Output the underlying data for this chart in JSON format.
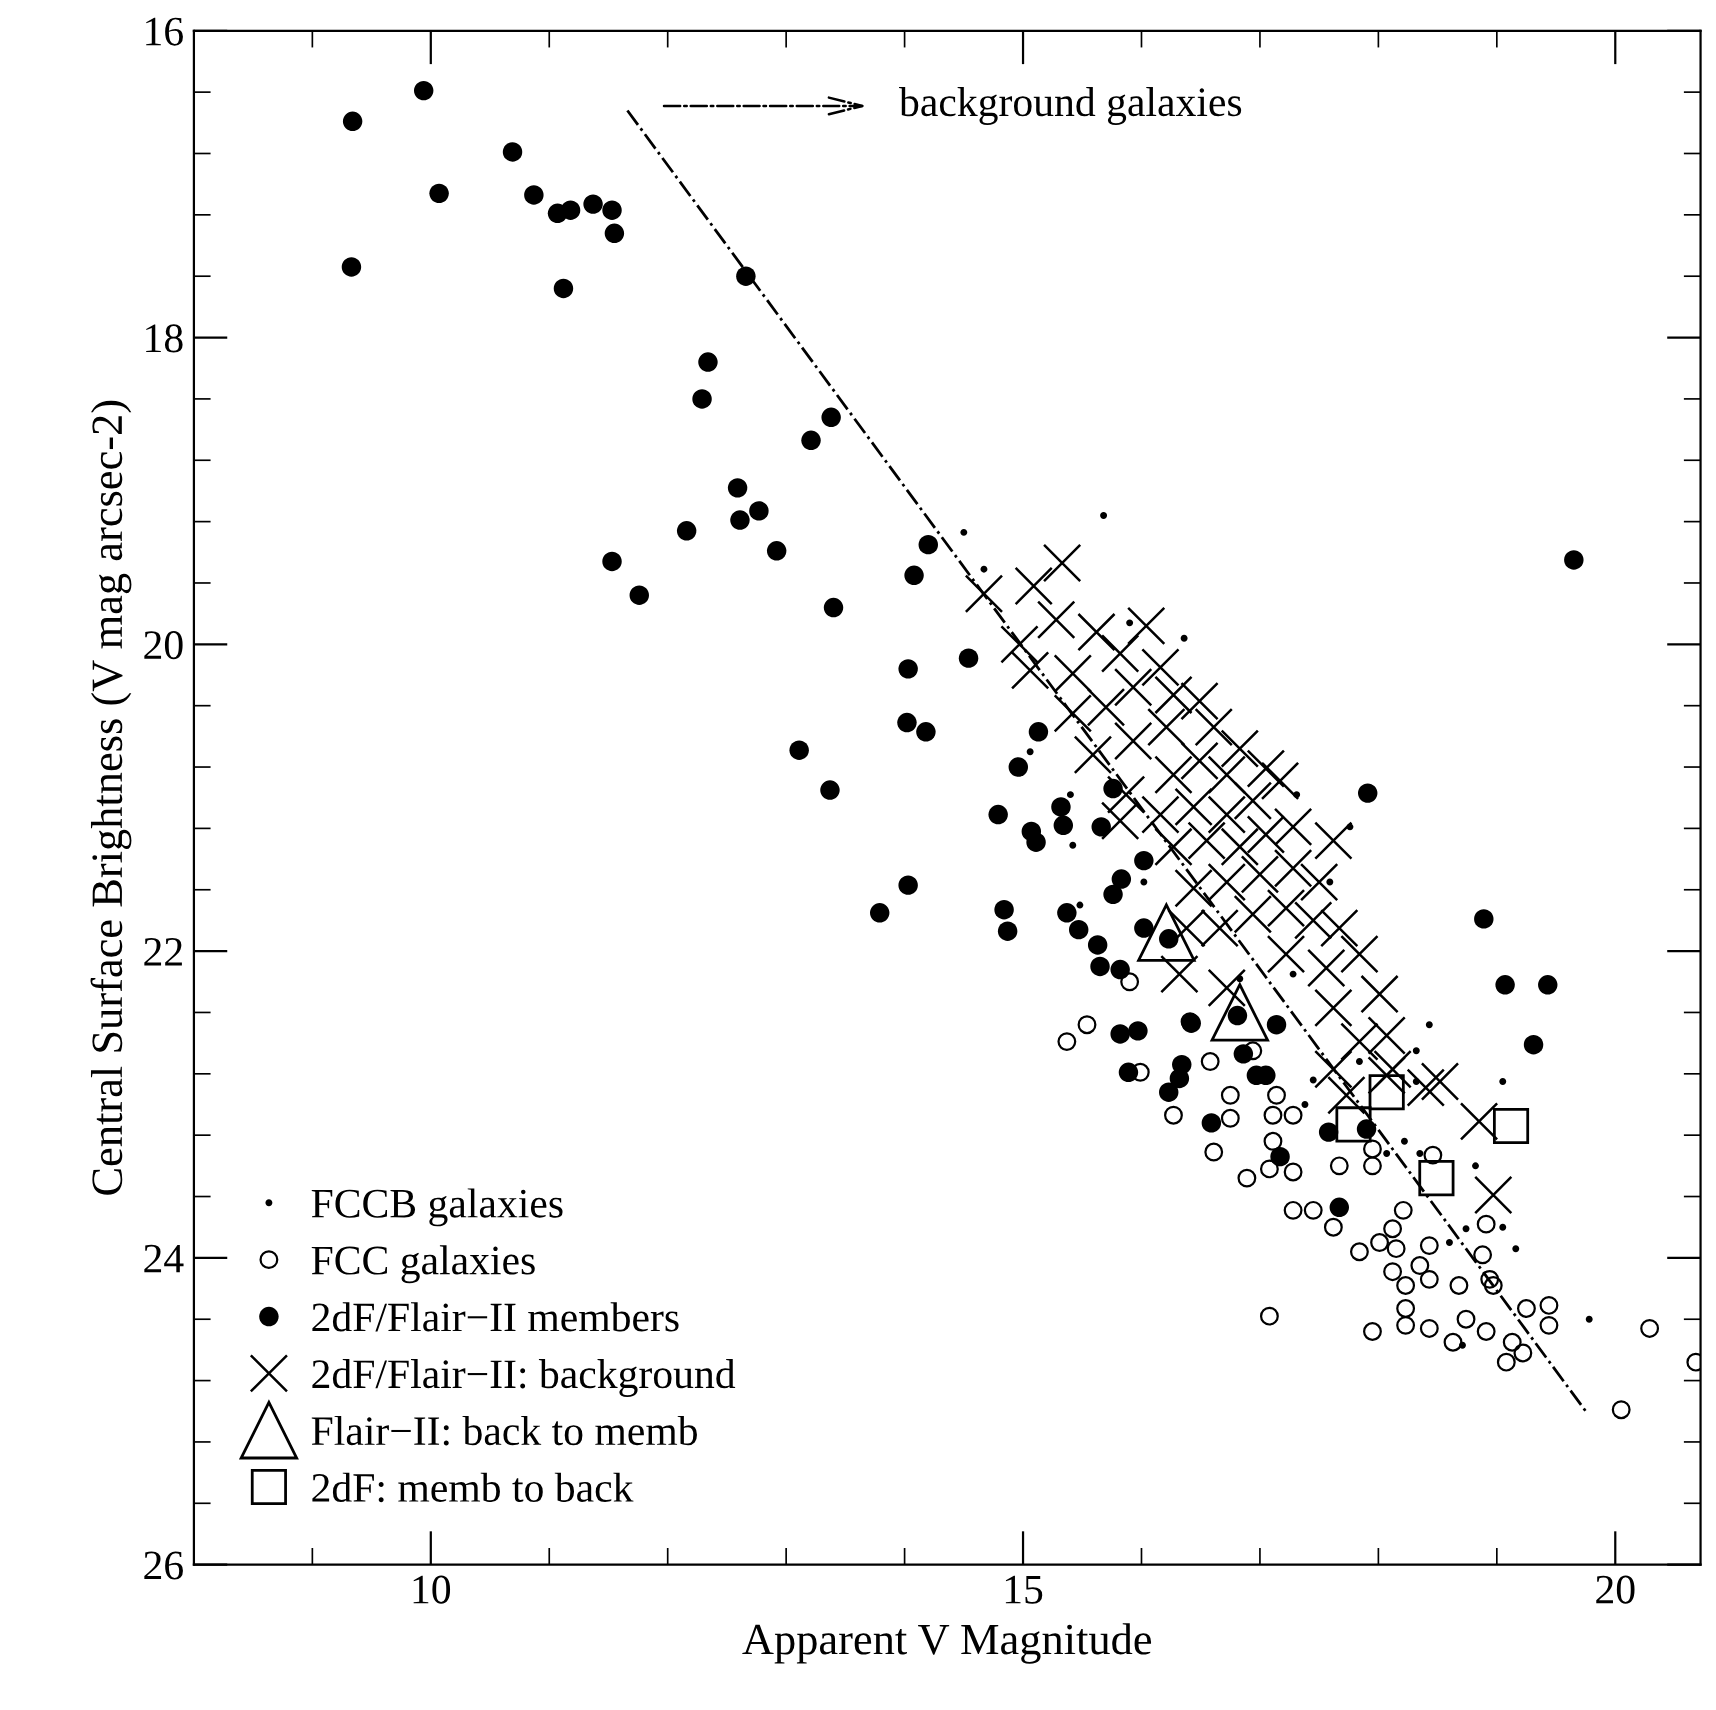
{
  "chart_data": {
    "type": "scatter",
    "xlabel": "Apparent V Magnitude",
    "ylabel": "Central Surface Brightness (V mag arcsec-2)",
    "xlim": [
      8,
      20.72
    ],
    "ylim": [
      26,
      16
    ],
    "xticks": [
      10,
      15,
      20
    ],
    "yticks": [
      16,
      18,
      20,
      22,
      24,
      26
    ],
    "grid": false,
    "legend": "bottom left",
    "annotations": [
      "background galaxies"
    ],
    "series": [
      {
        "name": "FCCB galaxies",
        "color": "#000000",
        "marker": "dot",
        "x": [
          15.68,
          14.5,
          14.67,
          16.36,
          15.9,
          17.31,
          17.76,
          15.06,
          15.4,
          15.42,
          16.02,
          15.48,
          16.83,
          17.59,
          17.28,
          18.43,
          18.32,
          19.05,
          18.22,
          18.82,
          18.6,
          19.16,
          17.38,
          17.45,
          18.71,
          19.78,
          17.84,
          18.32,
          18.74,
          19.05,
          18.35,
          18.07
        ],
        "values": [
          19.16,
          19.27,
          19.51,
          19.96,
          19.86,
          20.98,
          21.19,
          20.7,
          20.98,
          21.31,
          21.55,
          21.7,
          22.18,
          21.55,
          22.15,
          22.48,
          22.65,
          22.85,
          23.24,
          23.4,
          23.9,
          23.94,
          23.0,
          22.84,
          24.57,
          24.4,
          22.72,
          22.85,
          23.81,
          23.8,
          23.32,
          23.32
        ]
      },
      {
        "name": "FCC galaxies",
        "color": "#000000",
        "marker": "open_circle",
        "x": [
          15.37,
          15.54,
          15.9,
          16.41,
          16.58,
          15.99,
          16.75,
          16.27,
          17.14,
          17.11,
          16.61,
          16.75,
          17.11,
          16.89,
          17.08,
          17.28,
          17.67,
          17.95,
          17.28,
          17.45,
          17.62,
          18.21,
          17.84,
          18.01,
          18.15,
          18.43,
          18.35,
          18.12,
          18.23,
          18.43,
          18.68,
          18.23,
          18.97,
          18.88,
          18.91,
          19.25,
          19.44,
          19.44,
          18.74,
          18.91,
          19.13,
          19.08,
          18.43,
          18.23,
          17.95,
          18.63,
          19.22,
          17.08,
          20.29,
          20.68,
          20.05,
          16.94,
          17.28,
          17.95,
          18.12,
          18.46,
          18.94
        ],
        "values": [
          22.59,
          22.48,
          22.2,
          22.46,
          22.72,
          22.79,
          22.94,
          23.07,
          22.94,
          23.07,
          23.31,
          23.09,
          23.24,
          23.48,
          23.42,
          23.44,
          23.4,
          23.4,
          23.69,
          23.69,
          23.8,
          23.69,
          23.96,
          23.9,
          23.94,
          23.92,
          24.05,
          24.09,
          24.18,
          24.14,
          24.18,
          24.33,
          24.18,
          23.98,
          23.78,
          24.33,
          24.31,
          24.44,
          24.4,
          24.48,
          24.55,
          24.68,
          24.46,
          24.44,
          24.48,
          24.55,
          24.62,
          24.38,
          24.46,
          24.68,
          24.99,
          22.65,
          23.07,
          23.29,
          23.81,
          23.33,
          24.14
        ]
      },
      {
        "name": "2dF/Flair−II members",
        "color": "#000000",
        "marker": "circle",
        "x": [
          9.34,
          9.94,
          10.07,
          9.33,
          10.69,
          10.87,
          11.07,
          11.18,
          11.37,
          11.53,
          11.55,
          11.12,
          12.66,
          12.34,
          12.29,
          13.38,
          13.21,
          12.59,
          12.77,
          12.61,
          12.16,
          12.92,
          11.53,
          11.76,
          14.2,
          14.08,
          13.4,
          14.03,
          14.02,
          14.18,
          13.11,
          13.37,
          14.03,
          13.79,
          14.54,
          15.13,
          14.96,
          14.79,
          15.07,
          15.11,
          15.32,
          15.34,
          15.76,
          15.66,
          16.02,
          15.83,
          15.76,
          14.84,
          14.87,
          15.37,
          15.47,
          15.63,
          16.02,
          16.23,
          15.65,
          15.82,
          17.91,
          15.82,
          15.97,
          16.42,
          16.81,
          15.89,
          16.34,
          16.32,
          16.86,
          16.97,
          17.05,
          16.23,
          17.14,
          18.89,
          19.07,
          19.43,
          19.31,
          16.59,
          17.17,
          17.67,
          17.58,
          17.9,
          19.65
        ],
        "values": [
          16.59,
          16.39,
          17.06,
          17.54,
          16.79,
          17.07,
          17.19,
          17.17,
          17.13,
          17.17,
          17.32,
          17.68,
          17.6,
          18.16,
          18.4,
          18.52,
          18.67,
          18.98,
          19.13,
          19.19,
          19.26,
          19.39,
          19.46,
          19.68,
          19.35,
          19.55,
          19.76,
          20.16,
          20.51,
          20.57,
          20.69,
          20.95,
          21.57,
          21.75,
          20.09,
          20.57,
          20.8,
          21.11,
          21.22,
          21.29,
          21.06,
          21.18,
          20.94,
          21.19,
          21.41,
          21.53,
          21.63,
          21.73,
          21.87,
          21.75,
          21.86,
          21.96,
          21.85,
          21.92,
          22.1,
          22.12,
          20.97,
          22.54,
          22.52,
          22.47,
          22.42,
          22.79,
          22.74,
          22.83,
          22.67,
          22.81,
          22.81,
          22.92,
          22.48,
          21.79,
          22.22,
          22.22,
          22.61,
          23.12,
          23.34,
          23.67,
          23.18,
          23.16,
          19.45
        ]
      },
      {
        "name": "2dF/Flair−II: background",
        "color": "#000000",
        "marker": "cross",
        "x": [
          15.33,
          15.09,
          14.67,
          15.28,
          16.04,
          14.97,
          15.62,
          15.06,
          15.42,
          15.82,
          16.16,
          15.42,
          15.7,
          15.93,
          16.27,
          16.49,
          15.59,
          15.93,
          16.21,
          16.61,
          16.83,
          15.87,
          16.27,
          16.49,
          16.72,
          17.05,
          15.82,
          16.16,
          16.44,
          16.72,
          16.94,
          17.17,
          16.27,
          16.55,
          16.83,
          17.05,
          17.28,
          17.62,
          16.44,
          16.72,
          17.0,
          17.28,
          17.5,
          16.38,
          16.66,
          16.94,
          17.22,
          17.45,
          17.67,
          16.32,
          16.72,
          17.22,
          17.56,
          17.84,
          18.01,
          17.62,
          17.84,
          18.07,
          18.4,
          18.52,
          18.85,
          18.97,
          18.12,
          18.07,
          17.62,
          17.73
        ],
        "values": [
          19.47,
          19.62,
          19.67,
          19.84,
          19.88,
          20.0,
          19.92,
          20.17,
          20.19,
          20.06,
          20.15,
          20.45,
          20.41,
          20.28,
          20.33,
          20.37,
          20.72,
          20.63,
          20.54,
          20.54,
          20.68,
          20.98,
          20.85,
          20.76,
          20.85,
          20.81,
          21.15,
          21.11,
          21.06,
          21.11,
          21.02,
          20.89,
          21.32,
          21.28,
          21.32,
          21.24,
          21.19,
          21.28,
          21.59,
          21.55,
          21.5,
          21.46,
          21.55,
          21.85,
          21.85,
          21.76,
          21.72,
          21.8,
          21.85,
          22.15,
          22.24,
          22.02,
          22.11,
          22.02,
          22.28,
          22.37,
          22.59,
          22.81,
          22.89,
          22.85,
          23.11,
          23.59,
          22.77,
          22.55,
          22.77,
          22.94
        ]
      },
      {
        "name": "Flair−II: back to memb",
        "color": "#000000",
        "marker": "triangle",
        "x": [
          16.21,
          16.83
        ],
        "values": [
          21.88,
          22.4
        ]
      },
      {
        "name": "2dF: memb to back",
        "color": "#000000",
        "marker": "square",
        "x": [
          18.07,
          17.79,
          18.49,
          19.12
        ],
        "values": [
          22.92,
          23.13,
          23.48,
          23.14
        ]
      },
      {
        "type": "line",
        "color": "#000000",
        "line_style": "dashdot",
        "marker": "none",
        "x": [
          11.66,
          19.77
        ],
        "values": [
          16.52,
          25.02
        ]
      }
    ]
  }
}
